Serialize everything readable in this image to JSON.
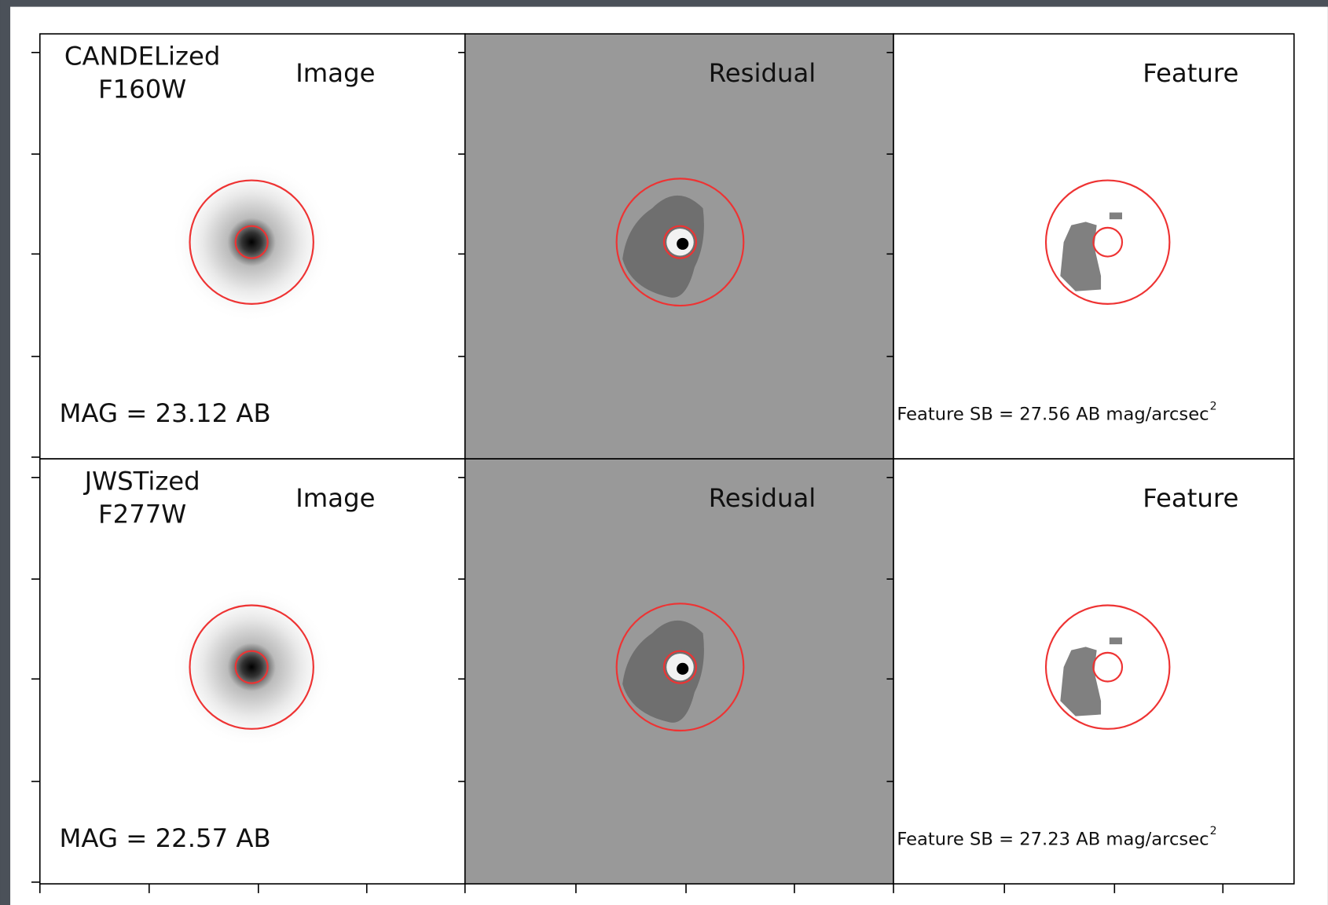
{
  "panels": [
    {
      "survey": "CANDELized",
      "filter": "F160W",
      "image_title": "Image",
      "residual_title": "Residual",
      "feature_title": "Feature",
      "magnitude": "MAG = 23.12 AB",
      "feature_sb": "Feature SB = 27.56 AB mag/arcsec",
      "feature_sb_exponent": "2"
    },
    {
      "survey": "JWSTized",
      "filter": "F277W",
      "image_title": "Image",
      "residual_title": "Residual",
      "feature_title": "Feature",
      "magnitude": "MAG = 22.57 AB",
      "feature_sb": "Feature SB = 27.23 AB mag/arcsec",
      "feature_sb_exponent": "2"
    }
  ]
}
